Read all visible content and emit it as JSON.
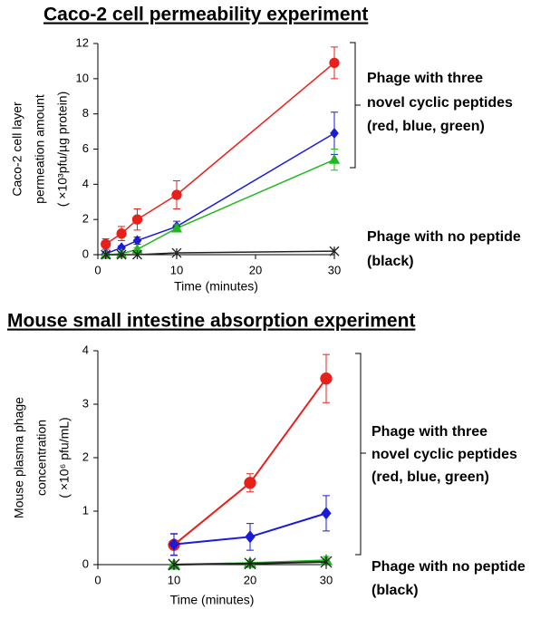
{
  "chart_data": [
    {
      "type": "line",
      "title": "Caco-2 cell permeability experiment",
      "ylabel": [
        "Caco-2 cell layer",
        "permeation amount",
        "( ×10³pfu/µg protein)"
      ],
      "xlabel": "Time (minutes)",
      "x": [
        1,
        3,
        5,
        10,
        30
      ],
      "xlim": [
        0,
        30
      ],
      "xticks": [
        0,
        10,
        20,
        30
      ],
      "ylim": [
        0,
        12
      ],
      "yticks": [
        0,
        2,
        4,
        6,
        8,
        10,
        12
      ],
      "series": [
        {
          "color": "#e8201c",
          "marker": "circle",
          "values": [
            0.6,
            1.2,
            2.0,
            3.4,
            10.9
          ],
          "errors": [
            0.3,
            0.4,
            0.6,
            0.8,
            0.9
          ]
        },
        {
          "color": "#1a1adb",
          "marker": "diamond",
          "values": [
            0.05,
            0.4,
            0.8,
            1.6,
            6.9
          ],
          "errors": [
            0.1,
            0.1,
            0.2,
            0.3,
            1.2
          ]
        },
        {
          "color": "#22b81e",
          "marker": "triangle",
          "values": [
            0,
            0.05,
            0.3,
            1.5,
            5.4
          ],
          "errors": [
            0.05,
            0.05,
            0.1,
            0.2,
            0.6
          ]
        },
        {
          "color": "#222222",
          "marker": "asterisk",
          "values": [
            0,
            0,
            0,
            0.1,
            0.2
          ]
        }
      ],
      "annotations": [
        [
          "Phage with three",
          "novel cyclic peptides",
          "(red, blue, green)"
        ],
        [
          "Phage with no peptide",
          "(black)"
        ]
      ]
    },
    {
      "type": "line",
      "title": "Mouse small intestine absorption experiment",
      "ylabel": [
        "Mouse plasma phage",
        "concentration",
        "( ×10⁶ pfu/mL)"
      ],
      "xlabel": "Time (minutes)",
      "x": [
        10,
        20,
        30
      ],
      "xlim": [
        0,
        30
      ],
      "xticks": [
        0,
        10,
        20,
        30
      ],
      "ylim": [
        0,
        4
      ],
      "yticks": [
        0,
        1,
        2,
        3,
        4
      ],
      "series": [
        {
          "color": "#e8201c",
          "marker": "circle",
          "values": [
            0.37,
            1.53,
            3.48
          ],
          "errors": [
            0.2,
            0.17,
            0.45
          ]
        },
        {
          "color": "#1a1adb",
          "marker": "diamond",
          "values": [
            0.38,
            0.52,
            0.96
          ],
          "errors": [
            0.2,
            0.25,
            0.33
          ]
        },
        {
          "color": "#22b81e",
          "marker": "triangle",
          "values": [
            0,
            0.03,
            0.08
          ],
          "errors": [
            0.05,
            0.05,
            0.07
          ]
        },
        {
          "color": "#222222",
          "marker": "asterisk",
          "values": [
            0,
            0.02,
            0.05
          ]
        }
      ],
      "annotations": [
        [
          "Phage with three",
          "novel cyclic peptides",
          "(red, blue, green)"
        ],
        [
          "Phage with no peptide",
          "(black)"
        ]
      ]
    }
  ]
}
